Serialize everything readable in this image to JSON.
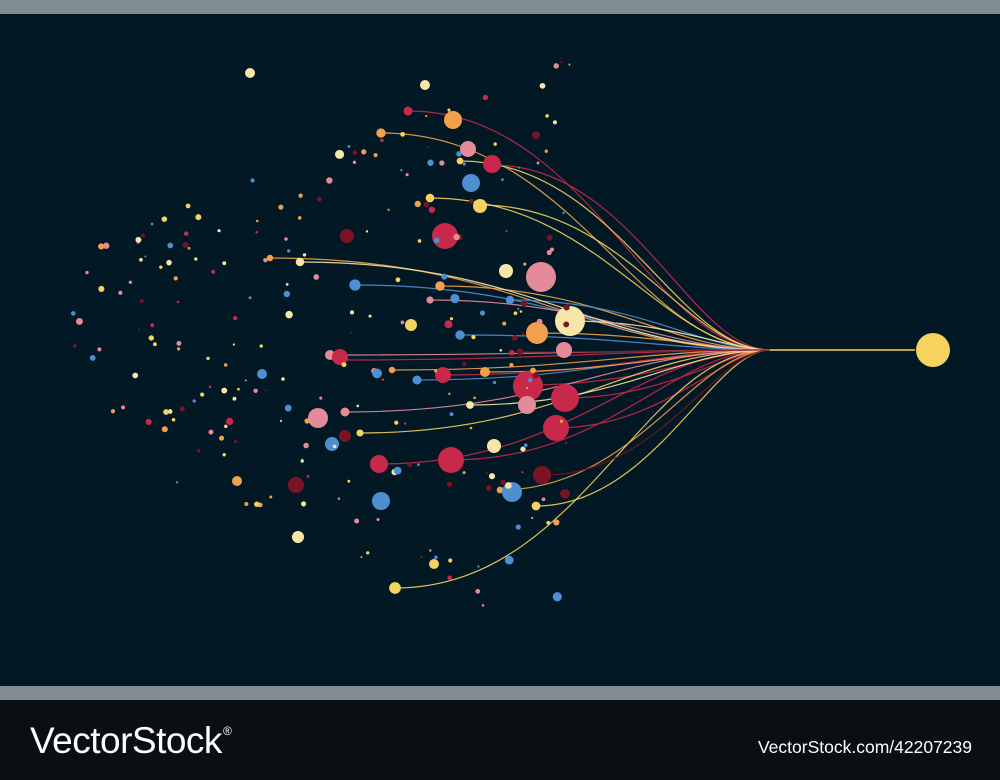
{
  "footer": {
    "brand": "VectorStock",
    "registered_mark": "®",
    "image_id": "VectorStock.com/42207239"
  },
  "palette": {
    "background": "#021925",
    "gold": "#f5d35e",
    "orange": "#f2a14a",
    "crimson": "#c8284a",
    "pink": "#e48a98",
    "maroon": "#7a1424",
    "blue": "#4e8fd1",
    "cream": "#f8e6a8"
  }
}
